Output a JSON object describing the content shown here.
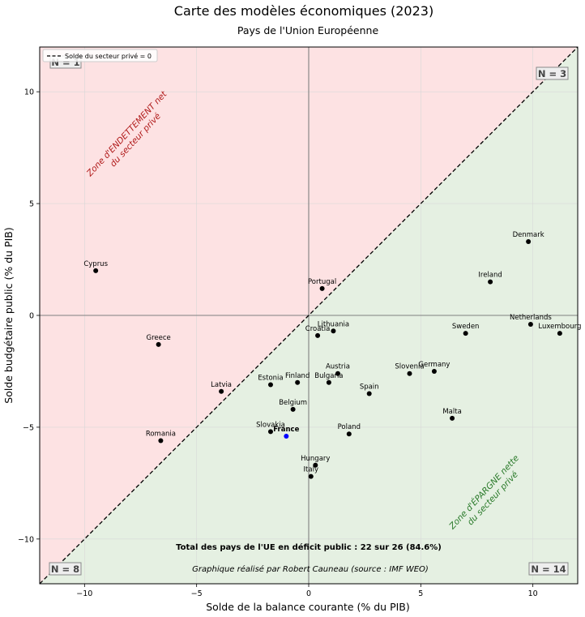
{
  "chart_data": {
    "type": "scatter",
    "title": "Carte des modèles économiques (2023)",
    "subtitle": "Pays de l'Union Européenne",
    "xlabel": "Solde de la balance courante (% du PIB)",
    "ylabel": "Solde budgétaire public (% du PIB)",
    "xlim": [
      -12,
      12
    ],
    "ylim": [
      -12,
      12
    ],
    "xticks": [
      -10,
      -5,
      0,
      5,
      10
    ],
    "yticks": [
      -10,
      -5,
      0,
      5,
      10
    ],
    "xtick_labels": [
      "−10",
      "−5",
      "0",
      "5",
      "10"
    ],
    "ytick_labels": [
      "−10",
      "−5",
      "0",
      "5",
      "10"
    ],
    "grid": true,
    "legend": {
      "position": "top-left",
      "label": "Solde du secteur privé = 0"
    },
    "diagonal_line": {
      "from": [
        -12,
        -12
      ],
      "to": [
        12,
        12
      ]
    },
    "points": [
      {
        "name": "Cyprus",
        "x": -9.5,
        "y": 2.0,
        "highlight": false
      },
      {
        "name": "Greece",
        "x": -6.7,
        "y": -1.3,
        "highlight": false
      },
      {
        "name": "Latvia",
        "x": -3.9,
        "y": -3.4,
        "highlight": false
      },
      {
        "name": "Romania",
        "x": -6.6,
        "y": -5.6,
        "highlight": false
      },
      {
        "name": "Estonia",
        "x": -1.7,
        "y": -3.1,
        "highlight": false
      },
      {
        "name": "Finland",
        "x": -0.5,
        "y": -3.0,
        "highlight": false
      },
      {
        "name": "Belgium",
        "x": -0.7,
        "y": -4.2,
        "highlight": false
      },
      {
        "name": "Slovakia",
        "x": -1.7,
        "y": -5.2,
        "highlight": false
      },
      {
        "name": "France",
        "x": -1.0,
        "y": -5.4,
        "highlight": true
      },
      {
        "name": "Portugal",
        "x": 0.6,
        "y": 1.2,
        "highlight": false
      },
      {
        "name": "Croatia",
        "x": 0.4,
        "y": -0.9,
        "highlight": false
      },
      {
        "name": "Lithuania",
        "x": 1.1,
        "y": -0.7,
        "highlight": false
      },
      {
        "name": "Austria",
        "x": 1.3,
        "y": -2.6,
        "highlight": false
      },
      {
        "name": "Bulgaria",
        "x": 0.9,
        "y": -3.0,
        "highlight": false
      },
      {
        "name": "Hungary",
        "x": 0.3,
        "y": -6.7,
        "highlight": false
      },
      {
        "name": "Italy",
        "x": 0.1,
        "y": -7.2,
        "highlight": false
      },
      {
        "name": "Spain",
        "x": 2.7,
        "y": -3.5,
        "highlight": false
      },
      {
        "name": "Poland",
        "x": 1.8,
        "y": -5.3,
        "highlight": false
      },
      {
        "name": "Slovenia",
        "x": 4.5,
        "y": -2.6,
        "highlight": false
      },
      {
        "name": "Germany",
        "x": 5.6,
        "y": -2.5,
        "highlight": false
      },
      {
        "name": "Malta",
        "x": 6.4,
        "y": -4.6,
        "highlight": false
      },
      {
        "name": "Sweden",
        "x": 7.0,
        "y": -0.8,
        "highlight": false
      },
      {
        "name": "Ireland",
        "x": 8.1,
        "y": 1.5,
        "highlight": false
      },
      {
        "name": "Denmark",
        "x": 9.8,
        "y": 3.3,
        "highlight": false
      },
      {
        "name": "Netherlands",
        "x": 9.9,
        "y": -0.4,
        "highlight": false
      },
      {
        "name": "Luxembourg",
        "x": 11.2,
        "y": -0.8,
        "highlight": false
      }
    ],
    "annotations": {
      "zone_debt": [
        "Zone d'ENDETTEMENT net",
        "du secteur privé"
      ],
      "zone_savings": [
        "Zone d'ÉPARGNE nette",
        "du secteur privé"
      ],
      "total": "Total des pays de l'UE en déficit public : 22 sur 26 (84.6%)",
      "credit": "Graphique réalisé par Robert Cauneau (source : IMF WEO)"
    },
    "quadrant_counts": {
      "top_left": "N = 1",
      "top_right": "N = 3",
      "bottom_left": "N = 8",
      "bottom_right": "N = 14"
    }
  },
  "colors": {
    "debt_zone": "#fde2e3",
    "savings_zone": "#e5f0e2",
    "point": "#000000",
    "highlight_point": "#0000ff",
    "axis_line": "#808080",
    "grid": "#d8d8d8"
  }
}
